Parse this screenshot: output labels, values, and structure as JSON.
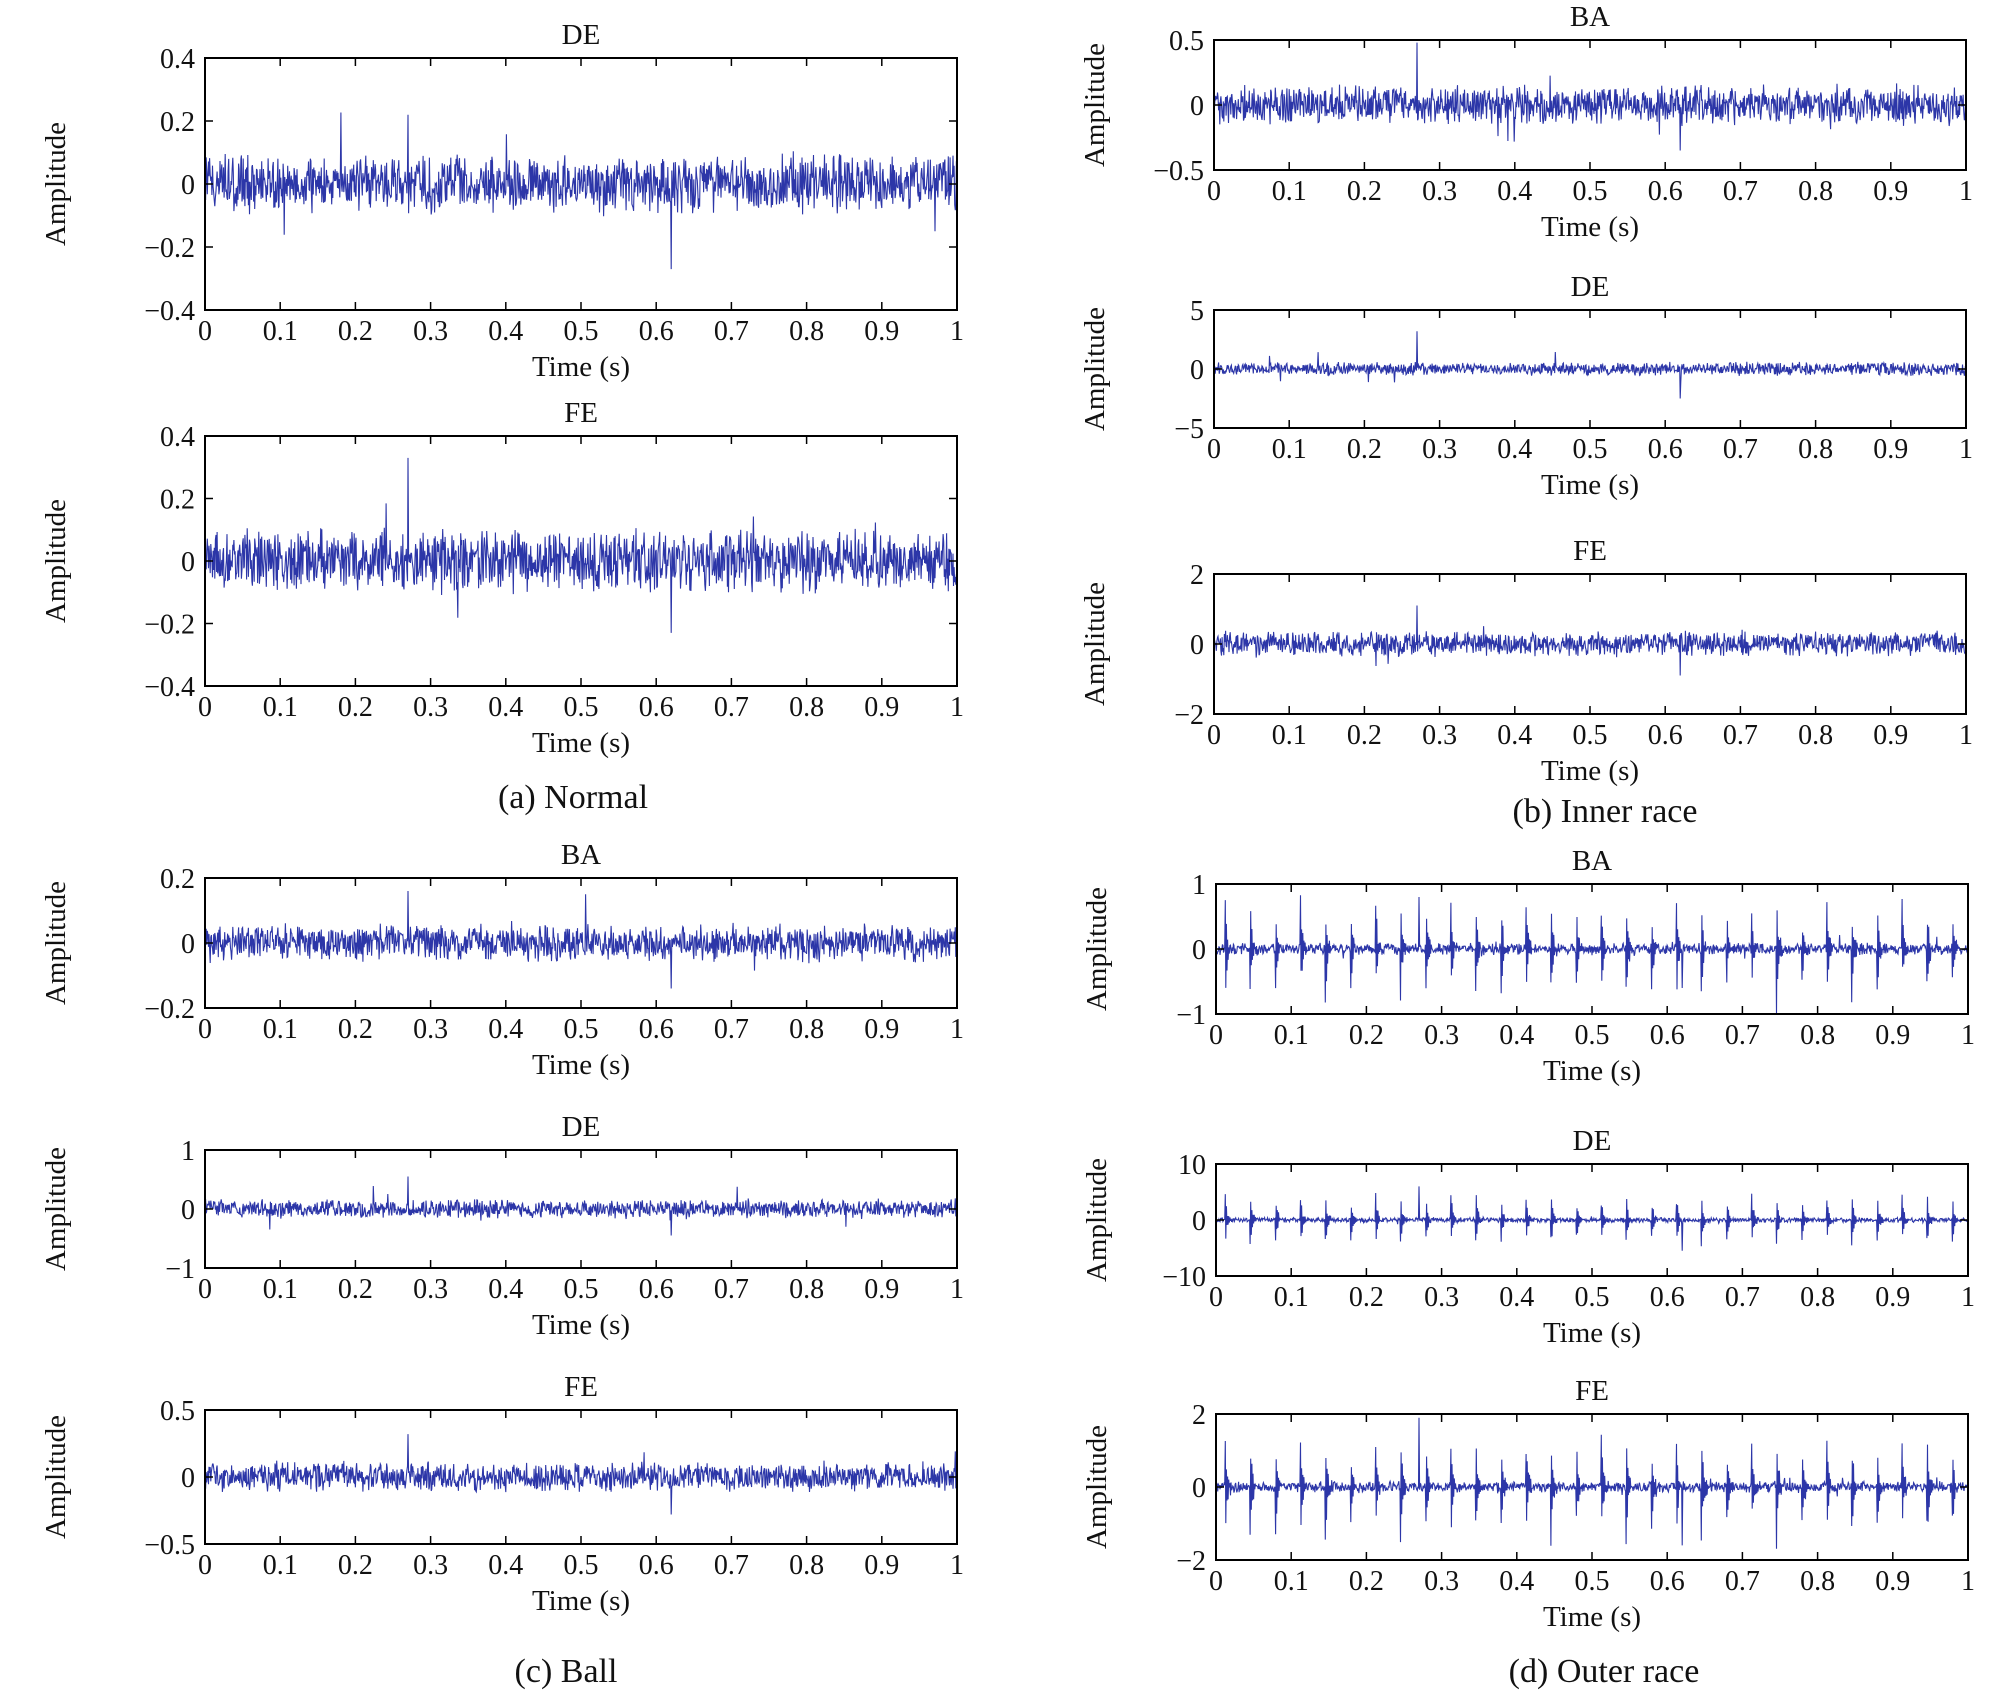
{
  "colors": {
    "trace": "#2c36a8",
    "axis": "#000000",
    "background": "#ffffff"
  },
  "chart_data": [
    {
      "type": "line",
      "title": "DE",
      "xlabel": "Time (s)",
      "ylabel": "Amplitude",
      "xlim": [
        0,
        1
      ],
      "ylim": [
        -0.4,
        0.4
      ],
      "xticks": [
        "0",
        "0.1",
        "0.2",
        "0.3",
        "0.4",
        "0.5",
        "0.6",
        "0.7",
        "0.8",
        "0.9",
        "1"
      ],
      "yticks": [
        "−0.4",
        "−0.2",
        "0",
        "0.2",
        "0.4"
      ],
      "yticks_values": [
        -0.4,
        -0.2,
        0,
        0.2,
        0.4
      ],
      "signal": {
        "noise": 0.075,
        "peak": 0.22,
        "min_peak": -0.27,
        "impulse_count": 0,
        "impulse_amplitude": 0,
        "first_impulse_t": 0
      },
      "series": [
        {
          "name": "DE"
        }
      ]
    },
    {
      "type": "line",
      "title": "FE",
      "xlabel": "Time (s)",
      "ylabel": "Amplitude",
      "xlim": [
        0,
        1
      ],
      "ylim": [
        -0.4,
        0.4
      ],
      "xticks": [
        "0",
        "0.1",
        "0.2",
        "0.3",
        "0.4",
        "0.5",
        "0.6",
        "0.7",
        "0.8",
        "0.9",
        "1"
      ],
      "yticks": [
        "−0.4",
        "−0.2",
        "0",
        "0.2",
        "0.4"
      ],
      "yticks_values": [
        -0.4,
        -0.2,
        0,
        0.2,
        0.4
      ],
      "signal": {
        "noise": 0.08,
        "peak": 0.33,
        "min_peak": -0.23,
        "impulse_count": 0,
        "impulse_amplitude": 0,
        "first_impulse_t": 0
      },
      "series": [
        {
          "name": "FE"
        }
      ]
    },
    {
      "type": "line",
      "title": "BA",
      "xlabel": "Time (s)",
      "ylabel": "Amplitude",
      "xlim": [
        0,
        1
      ],
      "ylim": [
        -0.5,
        0.5
      ],
      "xticks": [
        "0",
        "0.1",
        "0.2",
        "0.3",
        "0.4",
        "0.5",
        "0.6",
        "0.7",
        "0.8",
        "0.9",
        "1"
      ],
      "yticks": [
        "−0.5",
        "0",
        "0.5"
      ],
      "yticks_values": [
        -0.5,
        0,
        0.5
      ],
      "signal": {
        "noise": 0.12,
        "peak": 0.48,
        "min_peak": -0.35,
        "impulse_count": 0,
        "impulse_amplitude": 0,
        "first_impulse_t": 0
      },
      "series": [
        {
          "name": "BA"
        }
      ]
    },
    {
      "type": "line",
      "title": "DE",
      "xlabel": "Time (s)",
      "ylabel": "Amplitude",
      "xlim": [
        0,
        1
      ],
      "ylim": [
        -5,
        5
      ],
      "xticks": [
        "0",
        "0.1",
        "0.2",
        "0.3",
        "0.4",
        "0.5",
        "0.6",
        "0.7",
        "0.8",
        "0.9",
        "1"
      ],
      "yticks": [
        "−5",
        "0",
        "5"
      ],
      "yticks_values": [
        -5,
        0,
        5
      ],
      "signal": {
        "noise": 0.45,
        "peak": 3.2,
        "min_peak": -2.5,
        "impulse_count": 0,
        "impulse_amplitude": 0,
        "first_impulse_t": 0
      },
      "series": [
        {
          "name": "DE"
        }
      ]
    },
    {
      "type": "line",
      "title": "FE",
      "xlabel": "Time (s)",
      "ylabel": "Amplitude",
      "xlim": [
        0,
        1
      ],
      "ylim": [
        -2,
        2
      ],
      "xticks": [
        "0",
        "0.1",
        "0.2",
        "0.3",
        "0.4",
        "0.5",
        "0.6",
        "0.7",
        "0.8",
        "0.9",
        "1"
      ],
      "yticks": [
        "−2",
        "0",
        "2"
      ],
      "yticks_values": [
        -2,
        0,
        2
      ],
      "signal": {
        "noise": 0.28,
        "peak": 1.1,
        "min_peak": -0.9,
        "impulse_count": 0,
        "impulse_amplitude": 0,
        "first_impulse_t": 0
      },
      "series": [
        {
          "name": "FE"
        }
      ]
    },
    {
      "type": "line",
      "title": "BA",
      "xlabel": "Time (s)",
      "ylabel": "Amplitude",
      "xlim": [
        0,
        1
      ],
      "ylim": [
        -0.2,
        0.2
      ],
      "xticks": [
        "0",
        "0.1",
        "0.2",
        "0.3",
        "0.4",
        "0.5",
        "0.6",
        "0.7",
        "0.8",
        "0.9",
        "1"
      ],
      "yticks": [
        "−0.2",
        "0",
        "0.2"
      ],
      "yticks_values": [
        -0.2,
        0,
        0.2
      ],
      "signal": {
        "noise": 0.045,
        "peak": 0.16,
        "min_peak": -0.14,
        "impulse_count": 0,
        "impulse_amplitude": 0,
        "first_impulse_t": 0
      },
      "series": [
        {
          "name": "BA"
        }
      ]
    },
    {
      "type": "line",
      "title": "DE",
      "xlabel": "Time (s)",
      "ylabel": "Amplitude",
      "xlim": [
        0,
        1
      ],
      "ylim": [
        -1,
        1
      ],
      "xticks": [
        "0",
        "0.1",
        "0.2",
        "0.3",
        "0.4",
        "0.5",
        "0.6",
        "0.7",
        "0.8",
        "0.9",
        "1"
      ],
      "yticks": [
        "−1",
        "0",
        "1"
      ],
      "yticks_values": [
        -1,
        0,
        1
      ],
      "signal": {
        "noise": 0.13,
        "peak": 0.55,
        "min_peak": -0.45,
        "impulse_count": 0,
        "impulse_amplitude": 0,
        "first_impulse_t": 0
      },
      "series": [
        {
          "name": "DE"
        }
      ]
    },
    {
      "type": "line",
      "title": "FE",
      "xlabel": "Time (s)",
      "ylabel": "Amplitude",
      "xlim": [
        0,
        1
      ],
      "ylim": [
        -0.5,
        0.5
      ],
      "xticks": [
        "0",
        "0.1",
        "0.2",
        "0.3",
        "0.4",
        "0.5",
        "0.6",
        "0.7",
        "0.8",
        "0.9",
        "1"
      ],
      "yticks": [
        "−0.5",
        "0",
        "0.5"
      ],
      "yticks_values": [
        -0.5,
        0,
        0.5
      ],
      "signal": {
        "noise": 0.09,
        "peak": 0.32,
        "min_peak": -0.28,
        "impulse_count": 0,
        "impulse_amplitude": 0,
        "first_impulse_t": 0
      },
      "series": [
        {
          "name": "FE"
        }
      ]
    },
    {
      "type": "line",
      "title": "BA",
      "xlabel": "Time (s)",
      "ylabel": "Amplitude",
      "xlim": [
        0,
        1
      ],
      "ylim": [
        -1,
        1
      ],
      "xticks": [
        "0",
        "0.1",
        "0.2",
        "0.3",
        "0.4",
        "0.5",
        "0.6",
        "0.7",
        "0.8",
        "0.9",
        "1"
      ],
      "yticks": [
        "−1",
        "0",
        "1"
      ],
      "yticks_values": [
        -1,
        0,
        1
      ],
      "signal": {
        "noise": 0.07,
        "peak": 0.8,
        "min_peak": -0.6,
        "impulse_count": 30,
        "impulse_amplitude": 0.7,
        "first_impulse_t": 0.012
      },
      "series": [
        {
          "name": "BA"
        }
      ]
    },
    {
      "type": "line",
      "title": "DE",
      "xlabel": "Time (s)",
      "ylabel": "Amplitude",
      "xlim": [
        0,
        1
      ],
      "ylim": [
        -10,
        10
      ],
      "xticks": [
        "0",
        "0.1",
        "0.2",
        "0.3",
        "0.4",
        "0.5",
        "0.6",
        "0.7",
        "0.8",
        "0.9",
        "1"
      ],
      "yticks": [
        "−10",
        "0",
        "10"
      ],
      "yticks_values": [
        -10,
        0,
        10
      ],
      "signal": {
        "noise": 0.35,
        "peak": 6,
        "min_peak": -5.5,
        "impulse_count": 30,
        "impulse_amplitude": 4.5,
        "first_impulse_t": 0.012
      },
      "series": [
        {
          "name": "DE"
        }
      ]
    },
    {
      "type": "line",
      "title": "FE",
      "xlabel": "Time (s)",
      "ylabel": "Amplitude",
      "xlim": [
        0,
        1
      ],
      "ylim": [
        -2,
        2
      ],
      "xticks": [
        "0",
        "0.1",
        "0.2",
        "0.3",
        "0.4",
        "0.5",
        "0.6",
        "0.7",
        "0.8",
        "0.9",
        "1"
      ],
      "yticks": [
        "−2",
        "0",
        "2"
      ],
      "yticks_values": [
        -2,
        0,
        2
      ],
      "signal": {
        "noise": 0.12,
        "peak": 1.9,
        "min_peak": -1.6,
        "impulse_count": 30,
        "impulse_amplitude": 1.3,
        "first_impulse_t": 0.012
      },
      "series": [
        {
          "name": "FE"
        }
      ]
    }
  ],
  "captions": [
    "(a) Normal",
    "(b) Inner race",
    "(c) Ball",
    "(d) Outer race"
  ]
}
